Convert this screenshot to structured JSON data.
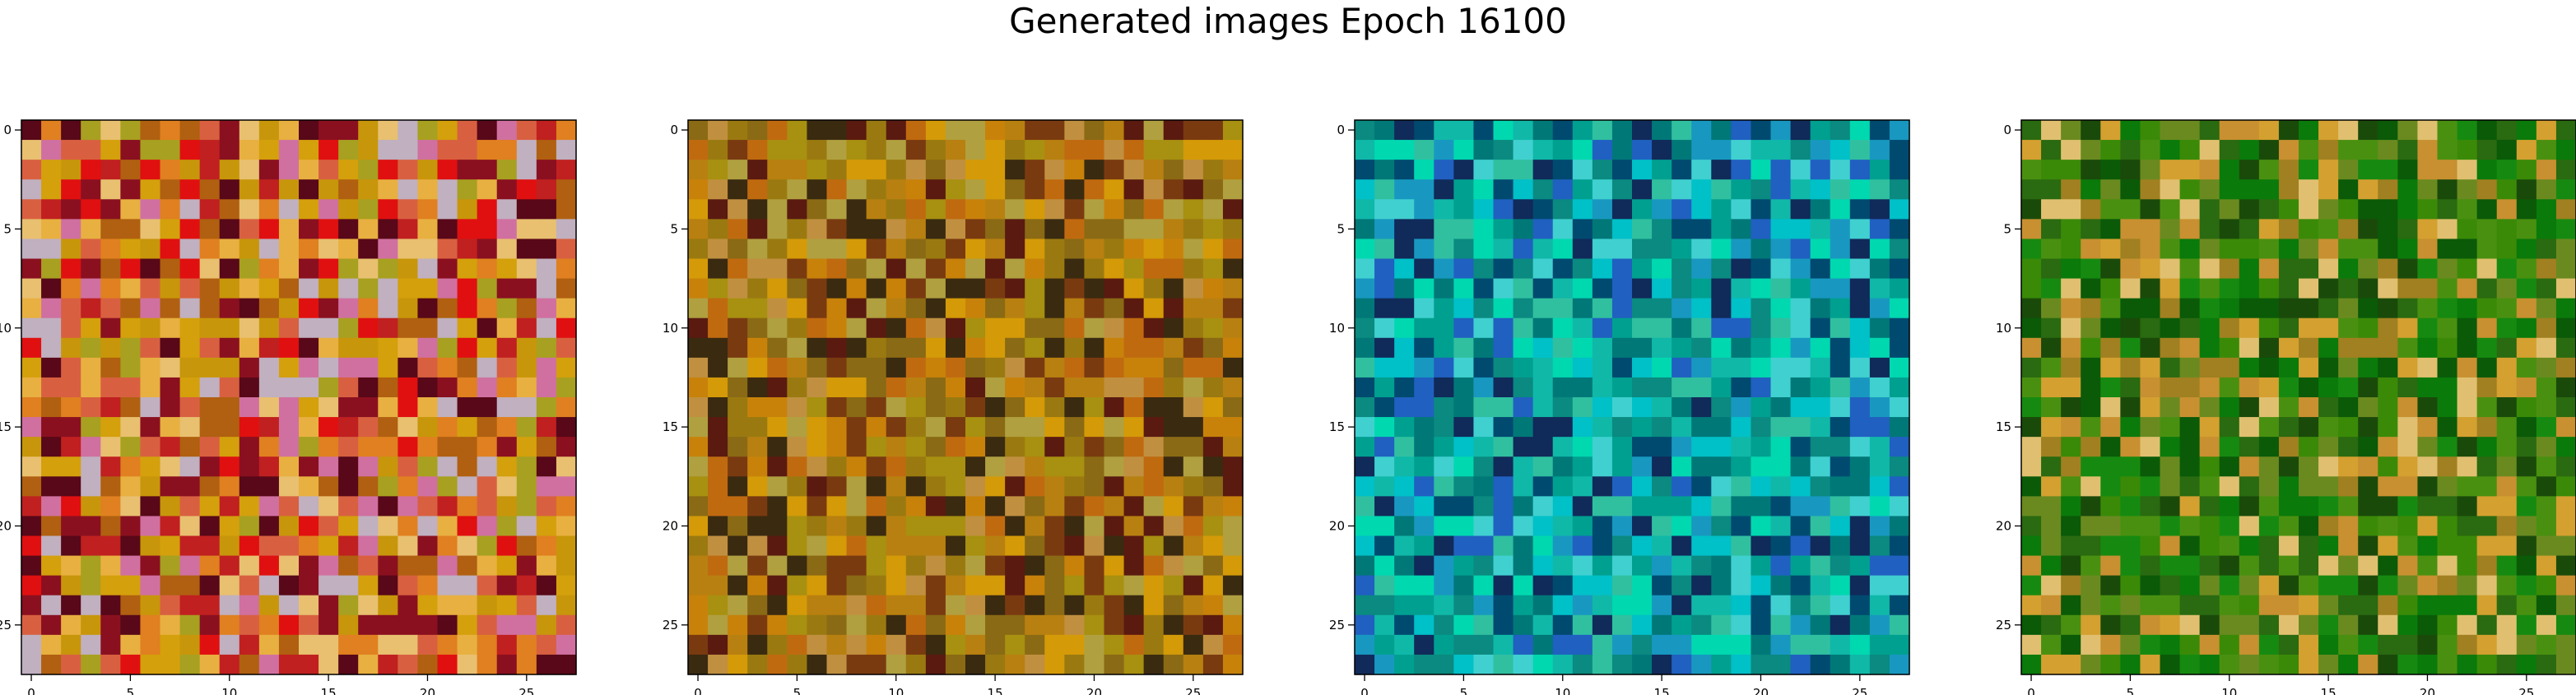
{
  "figure": {
    "title": "Generated images Epoch 16100"
  },
  "chart_data": [
    {
      "type": "heatmap",
      "x": {
        "ticks": [
          0,
          5,
          10,
          15,
          20,
          25
        ],
        "range": [
          -0.5,
          27.5
        ]
      },
      "y": {
        "ticks": [
          0,
          5,
          10,
          15,
          20,
          25
        ],
        "range": [
          -0.5,
          27.5
        ],
        "inverted": true
      },
      "grid": false,
      "palette": [
        "#c8960a",
        "#d4a00c",
        "#e08020",
        "#b06010",
        "#a8a020",
        "#e8b040",
        "#d86040",
        "#c02020",
        "#e01010",
        "#8a1020",
        "#580818",
        "#e8c070",
        "#d070a0",
        "#c0b0c0"
      ]
    },
    {
      "type": "heatmap",
      "x": {
        "ticks": [
          0,
          5,
          10,
          15,
          20,
          25
        ],
        "range": [
          -0.5,
          27.5
        ]
      },
      "y": {
        "ticks": [
          0,
          5,
          10,
          15,
          20,
          25
        ],
        "range": [
          -0.5,
          27.5
        ],
        "inverted": true
      },
      "grid": false,
      "palette": [
        "#c8820a",
        "#b88010",
        "#a89010",
        "#d49a08",
        "#9a7a10",
        "#c06a10",
        "#8a6a14",
        "#7a3a10",
        "#5a1a10",
        "#c09040",
        "#b0a040",
        "#3a2a10"
      ]
    },
    {
      "type": "heatmap",
      "x": {
        "ticks": [
          0,
          5,
          10,
          15,
          20,
          25
        ],
        "range": [
          -0.5,
          27.5
        ]
      },
      "y": {
        "ticks": [
          0,
          5,
          10,
          15,
          20,
          25
        ],
        "range": [
          -0.5,
          27.5
        ],
        "inverted": true
      },
      "grid": false,
      "palette": [
        "#00a090",
        "#10b8a8",
        "#00c0c8",
        "#1898c0",
        "#007878",
        "#0a8a80",
        "#30c0a0",
        "#2060c0",
        "#004a70",
        "#00d8b0",
        "#40d0d0",
        "#102a5a"
      ]
    },
    {
      "type": "heatmap",
      "x": {
        "ticks": [
          0,
          5,
          10,
          15,
          20,
          25
        ],
        "range": [
          -0.5,
          27.5
        ]
      },
      "y": {
        "ticks": [
          0,
          5,
          10,
          15,
          20,
          25
        ],
        "range": [
          -0.5,
          27.5
        ],
        "inverted": true
      },
      "grid": false,
      "palette": [
        "#0a7a0a",
        "#168a10",
        "#0a5a08",
        "#2a6a10",
        "#4a9010",
        "#3a8a08",
        "#6a8a20",
        "#a08020",
        "#c89030",
        "#d4a030",
        "#1a4a0a",
        "#e0c070"
      ]
    }
  ]
}
